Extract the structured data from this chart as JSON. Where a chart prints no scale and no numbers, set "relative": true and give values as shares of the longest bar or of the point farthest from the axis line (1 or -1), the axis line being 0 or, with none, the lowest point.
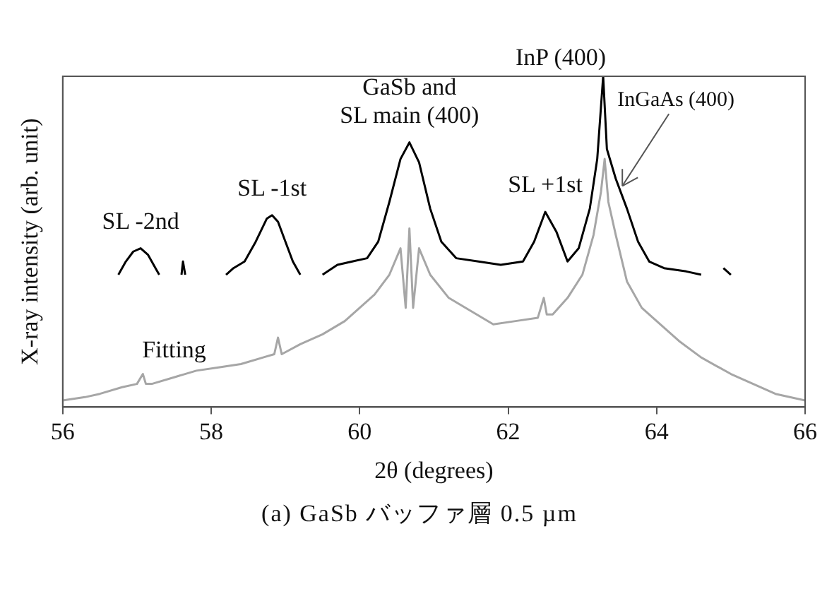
{
  "chart_data": {
    "type": "line",
    "relative": true,
    "xlabel": "2θ (degrees)",
    "ylabel": "X-ray intensity (arb. unit)",
    "xlim": [
      56,
      66
    ],
    "xticks": [
      56,
      58,
      60,
      62,
      64,
      66
    ],
    "grid": false,
    "legend": false,
    "marker": "none",
    "series": [
      {
        "color": "#a6a6a6",
        "x": [
          56,
          56.3,
          56.5,
          56.8,
          57.0,
          57.08,
          57.12,
          57.2,
          57.5,
          57.8,
          58.1,
          58.4,
          58.7,
          58.85,
          58.9,
          58.95,
          59.2,
          59.5,
          59.8,
          60.0,
          60.2,
          60.4,
          60.55,
          60.62,
          60.67,
          60.72,
          60.8,
          60.95,
          61.2,
          61.5,
          61.8,
          62.1,
          62.4,
          62.48,
          62.52,
          62.6,
          62.8,
          63.0,
          63.15,
          63.25,
          63.3,
          63.35,
          63.45,
          63.6,
          63.8,
          64.0,
          64.3,
          64.6,
          65.0,
          65.3,
          65.6,
          66.0
        ],
        "values": [
          0.02,
          0.03,
          0.04,
          0.06,
          0.07,
          0.1,
          0.07,
          0.07,
          0.09,
          0.11,
          0.12,
          0.13,
          0.15,
          0.16,
          0.21,
          0.16,
          0.19,
          0.22,
          0.26,
          0.3,
          0.34,
          0.4,
          0.48,
          0.3,
          0.54,
          0.3,
          0.48,
          0.4,
          0.33,
          0.29,
          0.25,
          0.26,
          0.27,
          0.33,
          0.28,
          0.28,
          0.33,
          0.4,
          0.52,
          0.65,
          0.75,
          0.62,
          0.52,
          0.38,
          0.3,
          0.26,
          0.2,
          0.15,
          0.1,
          0.07,
          0.04,
          0.02
        ]
      },
      {
        "color": "#000000",
        "x": [
          56.75,
          56.85,
          56.95,
          57.05,
          57.15,
          57.25,
          57.3,
          57.45,
          57.6,
          57.62,
          57.65,
          57.9,
          58.2,
          58.3,
          58.45,
          58.6,
          58.75,
          58.82,
          58.9,
          59.0,
          59.1,
          59.2,
          59.35,
          59.5,
          59.7,
          59.9,
          60.1,
          60.25,
          60.4,
          60.55,
          60.67,
          60.8,
          60.95,
          61.1,
          61.3,
          61.6,
          61.9,
          62.2,
          62.35,
          62.5,
          62.65,
          62.8,
          62.95,
          63.1,
          63.2,
          63.28,
          63.33,
          63.45,
          63.6,
          63.75,
          63.9,
          64.1,
          64.4,
          64.6,
          64.75,
          64.9,
          65.0
        ],
        "values": [
          0.4,
          0.44,
          0.47,
          0.48,
          0.46,
          0.42,
          0.4,
          null,
          0.4,
          0.44,
          0.4,
          null,
          0.4,
          0.42,
          0.44,
          0.5,
          0.57,
          0.58,
          0.56,
          0.5,
          0.44,
          0.4,
          null,
          0.4,
          0.43,
          0.44,
          0.45,
          0.5,
          0.62,
          0.75,
          0.8,
          0.74,
          0.6,
          0.5,
          0.45,
          0.44,
          0.43,
          0.44,
          0.5,
          0.59,
          0.53,
          0.44,
          0.48,
          0.6,
          0.75,
          1.0,
          0.78,
          0.69,
          0.6,
          0.5,
          0.44,
          0.42,
          0.41,
          0.4,
          null,
          0.42,
          0.4
        ]
      }
    ],
    "annotations": [
      {
        "text": "SL -2nd",
        "x": 57.05,
        "y": 0.48
      },
      {
        "text": "SL -1st",
        "x": 58.82,
        "y": 0.58
      },
      {
        "text": "GaSb and\nSL main (400)",
        "x": 60.67,
        "y": 0.8
      },
      {
        "text": "SL +1st",
        "x": 62.5,
        "y": 0.59
      },
      {
        "text": "InP (400)",
        "x": 63.28,
        "y": 1.0
      },
      {
        "text": "InGaAs (400)",
        "x": 63.5,
        "y": 0.66
      },
      {
        "text": "Fitting",
        "x": 57.5,
        "y": 0.09
      },
      "(a) GaSb バッファ層 0.5 µm"
    ]
  }
}
